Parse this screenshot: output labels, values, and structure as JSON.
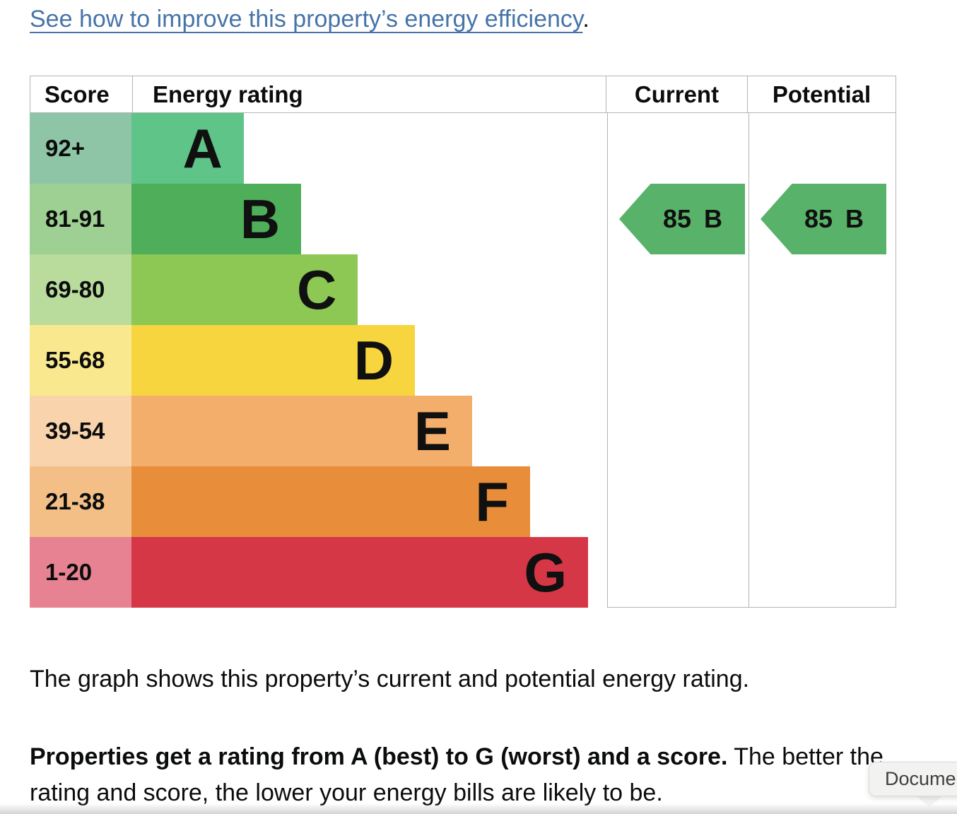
{
  "link": {
    "text": "See how to improve this property’s energy efficiency",
    "suffix": "."
  },
  "caption": "The graph shows this property’s current and potential energy rating.",
  "paragraph": {
    "bold": "Properties get a rating from A (best) to G (worst) and a score.",
    "rest": " The better the rating and score, the lower your energy bills are likely to be."
  },
  "tooltip": {
    "text": "Docume"
  },
  "colors": {
    "link": "#4674a8",
    "table_border": "#b1b4b6",
    "text": "#0b0c0c"
  },
  "chart_data": {
    "type": "bar",
    "columns": [
      "Score",
      "Energy rating",
      "Current",
      "Potential"
    ],
    "headers": {
      "score": "Score",
      "rating": "Energy rating",
      "current": "Current",
      "potential": "Potential"
    },
    "bands": [
      {
        "range": "92+",
        "letter": "A",
        "width_pct": 23.6,
        "bar_color": "#5ec487",
        "range_color": "#8fc5a7"
      },
      {
        "range": "81-91",
        "letter": "B",
        "width_pct": 35.7,
        "bar_color": "#4fae5a",
        "range_color": "#9ed093"
      },
      {
        "range": "69-80",
        "letter": "C",
        "width_pct": 47.6,
        "bar_color": "#8cc853",
        "range_color": "#b9dc9c"
      },
      {
        "range": "55-68",
        "letter": "D",
        "width_pct": 59.6,
        "bar_color": "#f7d53f",
        "range_color": "#fae88e"
      },
      {
        "range": "39-54",
        "letter": "E",
        "width_pct": 71.6,
        "bar_color": "#f2ae6a",
        "range_color": "#f8d3ab"
      },
      {
        "range": "21-38",
        "letter": "F",
        "width_pct": 83.8,
        "bar_color": "#e88d3a",
        "range_color": "#f3bf87"
      },
      {
        "range": "1-20",
        "letter": "G",
        "width_pct": 96.0,
        "bar_color": "#d63747",
        "range_color": "#e68292"
      }
    ],
    "current": {
      "score": "85",
      "grade": "B",
      "band_index": 1,
      "arrow_color": "#58b269"
    },
    "potential": {
      "score": "85",
      "grade": "B",
      "band_index": 1,
      "arrow_color": "#58b269"
    }
  }
}
